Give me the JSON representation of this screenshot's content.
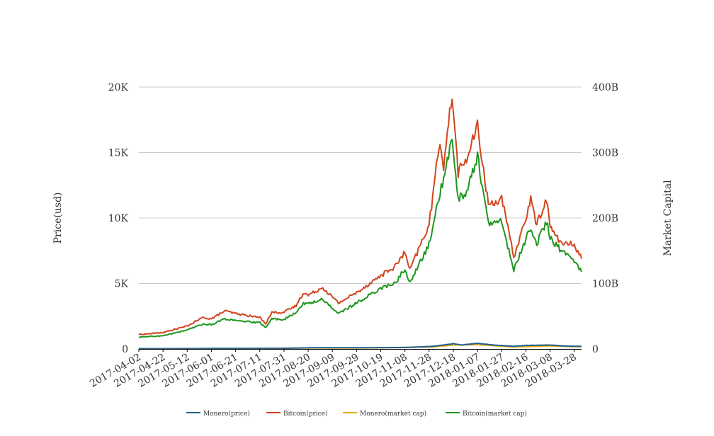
{
  "chart_data": {
    "type": "line",
    "title": "",
    "ylabel_left": "Price(usd)",
    "ylabel_right": "Market Capital",
    "x_tick_labels": [
      "2017-04-02",
      "2017-04-22",
      "2017-05-12",
      "2017-06-01",
      "2017-06-21",
      "2017-07-11",
      "2017-07-31",
      "2017-08-20",
      "2017-09-09",
      "2017-09-29",
      "2017-10-19",
      "2017-11-08",
      "2017-11-28",
      "2017-12-18",
      "2018-01-07",
      "2018-01-27",
      "2018-02-16",
      "2018-03-08",
      "2018-03-28"
    ],
    "y_left": {
      "min": 0,
      "max": 20000,
      "ticks": [
        0,
        5000,
        10000,
        15000,
        20000
      ],
      "tick_labels": [
        "0",
        "5K",
        "10K",
        "15K",
        "20K"
      ]
    },
    "y_right": {
      "min": 0,
      "max": 400000000000,
      "ticks": [
        0,
        100000000000,
        200000000000,
        300000000000,
        400000000000
      ],
      "tick_labels": [
        "0",
        "100B",
        "200B",
        "300B",
        "400B"
      ]
    },
    "x_range": [
      "2017-04-02",
      "2018-04-03"
    ],
    "grid": true,
    "legend_position": "bottom",
    "series": [
      {
        "name": "Monero(price)",
        "axis": "left",
        "color": "#1f5f8b",
        "points": [
          [
            "2017-04-02",
            20
          ],
          [
            "2017-05-12",
            25
          ],
          [
            "2017-06-21",
            45
          ],
          [
            "2017-07-31",
            45
          ],
          [
            "2017-08-26",
            100
          ],
          [
            "2017-09-29",
            90
          ],
          [
            "2017-11-08",
            110
          ],
          [
            "2017-12-01",
            200
          ],
          [
            "2017-12-18",
            400
          ],
          [
            "2017-12-25",
            300
          ],
          [
            "2018-01-07",
            430
          ],
          [
            "2018-01-20",
            300
          ],
          [
            "2018-02-06",
            200
          ],
          [
            "2018-02-16",
            270
          ],
          [
            "2018-03-08",
            300
          ],
          [
            "2018-03-20",
            220
          ],
          [
            "2018-04-03",
            200
          ]
        ]
      },
      {
        "name": "Bitcoin(price)",
        "axis": "left",
        "color": "#d2451e",
        "points": [
          [
            "2017-04-02",
            1100
          ],
          [
            "2017-04-22",
            1250
          ],
          [
            "2017-05-12",
            1750
          ],
          [
            "2017-05-25",
            2400
          ],
          [
            "2017-06-01",
            2300
          ],
          [
            "2017-06-12",
            2900
          ],
          [
            "2017-06-21",
            2700
          ],
          [
            "2017-07-11",
            2400
          ],
          [
            "2017-07-16",
            1950
          ],
          [
            "2017-07-21",
            2800
          ],
          [
            "2017-07-31",
            2800
          ],
          [
            "2017-08-10",
            3300
          ],
          [
            "2017-08-16",
            4300
          ],
          [
            "2017-08-20",
            4100
          ],
          [
            "2017-09-01",
            4700
          ],
          [
            "2017-09-14",
            3500
          ],
          [
            "2017-09-29",
            4300
          ],
          [
            "2017-10-19",
            5600
          ],
          [
            "2017-10-31",
            6300
          ],
          [
            "2017-11-08",
            7400
          ],
          [
            "2017-11-12",
            6000
          ],
          [
            "2017-11-28",
            9500
          ],
          [
            "2017-12-07",
            16000
          ],
          [
            "2017-12-10",
            14000
          ],
          [
            "2017-12-17",
            19500
          ],
          [
            "2017-12-22",
            13500
          ],
          [
            "2017-12-29",
            14500
          ],
          [
            "2018-01-07",
            17000
          ],
          [
            "2018-01-16",
            11000
          ],
          [
            "2018-01-27",
            11500
          ],
          [
            "2018-02-06",
            7000
          ],
          [
            "2018-02-16",
            10000
          ],
          [
            "2018-02-20",
            11400
          ],
          [
            "2018-02-25",
            9500
          ],
          [
            "2018-03-05",
            11500
          ],
          [
            "2018-03-08",
            9300
          ],
          [
            "2018-03-18",
            8000
          ],
          [
            "2018-03-28",
            8000
          ],
          [
            "2018-04-03",
            6900
          ]
        ]
      },
      {
        "name": "Monero(market cap)",
        "axis": "right",
        "color": "#e6a817",
        "points": [
          [
            "2017-04-02",
            300000000
          ],
          [
            "2017-06-21",
            600000000
          ],
          [
            "2017-08-26",
            1500000000
          ],
          [
            "2017-09-29",
            1300000000
          ],
          [
            "2017-12-01",
            3000000000
          ],
          [
            "2017-12-18",
            6000000000
          ],
          [
            "2018-01-07",
            6500000000
          ],
          [
            "2018-02-06",
            3000000000
          ],
          [
            "2018-03-08",
            4500000000
          ],
          [
            "2018-04-03",
            3200000000
          ]
        ]
      },
      {
        "name": "Bitcoin(market cap)",
        "axis": "right",
        "color": "#1e961e",
        "points": [
          [
            "2017-04-02",
            18000000000
          ],
          [
            "2017-04-22",
            20000000000
          ],
          [
            "2017-05-12",
            29000000000
          ],
          [
            "2017-05-25",
            38000000000
          ],
          [
            "2017-06-01",
            37000000000
          ],
          [
            "2017-06-12",
            46000000000
          ],
          [
            "2017-06-21",
            43000000000
          ],
          [
            "2017-07-11",
            40000000000
          ],
          [
            "2017-07-16",
            33000000000
          ],
          [
            "2017-07-21",
            46000000000
          ],
          [
            "2017-07-31",
            45000000000
          ],
          [
            "2017-08-10",
            55000000000
          ],
          [
            "2017-08-16",
            70000000000
          ],
          [
            "2017-08-20",
            69000000000
          ],
          [
            "2017-09-01",
            76000000000
          ],
          [
            "2017-09-14",
            54000000000
          ],
          [
            "2017-09-29",
            70000000000
          ],
          [
            "2017-10-19",
            93000000000
          ],
          [
            "2017-10-31",
            100000000000
          ],
          [
            "2017-11-08",
            123000000000
          ],
          [
            "2017-11-12",
            100000000000
          ],
          [
            "2017-11-28",
            160000000000
          ],
          [
            "2017-12-07",
            240000000000
          ],
          [
            "2017-12-10",
            255000000000
          ],
          [
            "2017-12-17",
            325000000000
          ],
          [
            "2017-12-22",
            230000000000
          ],
          [
            "2017-12-29",
            240000000000
          ],
          [
            "2018-01-07",
            295000000000
          ],
          [
            "2018-01-16",
            190000000000
          ],
          [
            "2018-01-27",
            195000000000
          ],
          [
            "2018-02-06",
            120000000000
          ],
          [
            "2018-02-16",
            168000000000
          ],
          [
            "2018-02-20",
            187000000000
          ],
          [
            "2018-02-25",
            160000000000
          ],
          [
            "2018-03-05",
            195000000000
          ],
          [
            "2018-03-08",
            170000000000
          ],
          [
            "2018-03-18",
            148000000000
          ],
          [
            "2018-03-28",
            136000000000
          ],
          [
            "2018-04-03",
            118000000000
          ]
        ]
      }
    ]
  }
}
